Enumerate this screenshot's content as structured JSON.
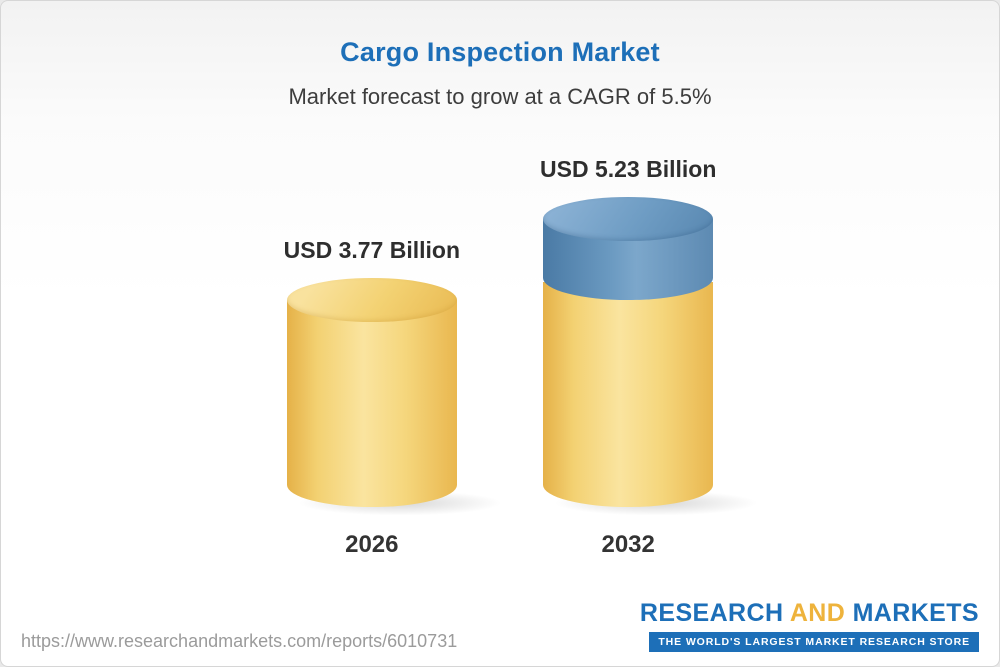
{
  "page": {
    "title": "Cargo Inspection Market",
    "subtitle": "Market forecast to grow at a CAGR of 5.5%",
    "footer_url": "https://www.researchandmarkets.com/reports/6010731",
    "brand": {
      "word1": "RESEARCH",
      "word2": "AND",
      "word3": "MARKETS",
      "tagline": "THE WORLD'S LARGEST MARKET RESEARCH STORE"
    }
  },
  "colors": {
    "title_blue": "#1d6fb8",
    "bar_gold": "#f2cb6c",
    "bar_blue": "#6b9ac1",
    "brand_gold": "#eeb33c"
  },
  "chart_data": {
    "type": "bar",
    "title": "Cargo Inspection Market",
    "subtitle": "Market forecast to grow at a CAGR of 5.5%",
    "unit": "USD Billion",
    "cagr": "5.5%",
    "categories": [
      "2026",
      "2032"
    ],
    "values": [
      3.77,
      5.23
    ],
    "ylim": [
      0,
      5.23
    ],
    "grid": false,
    "legend": "none",
    "bars": [
      {
        "year": "2026",
        "value": 3.77,
        "label": "USD 3.77 Billion",
        "segments": [
          {
            "color": "gold",
            "value": 3.77
          }
        ]
      },
      {
        "year": "2032",
        "value": 5.23,
        "label": "USD 5.23 Billion",
        "segments": [
          {
            "color": "blue",
            "value": 1.46
          },
          {
            "color": "gold",
            "value": 3.77
          }
        ]
      }
    ]
  }
}
